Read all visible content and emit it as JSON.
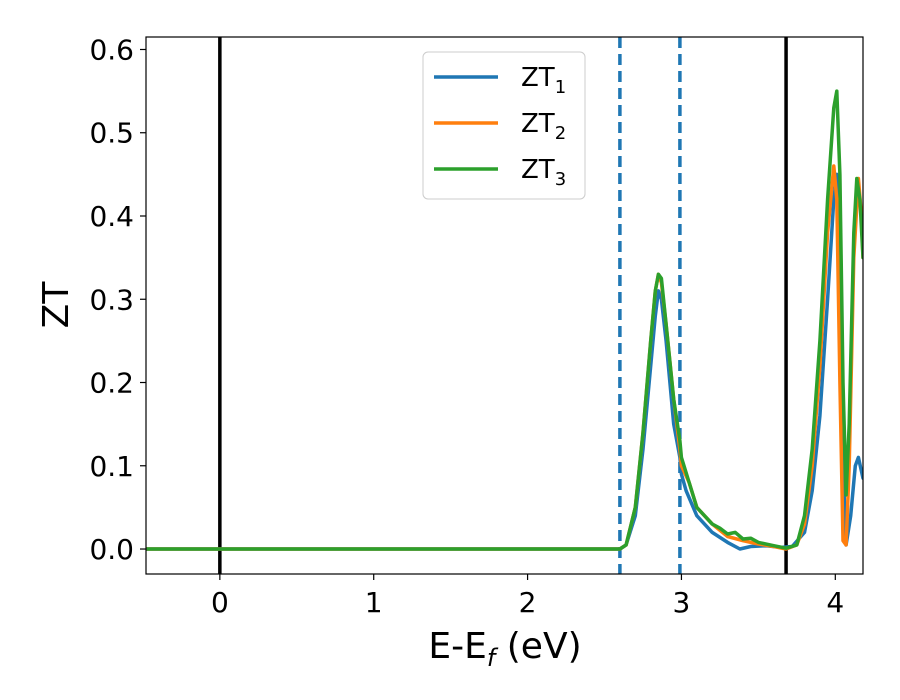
{
  "chart_data": {
    "type": "line",
    "xlabel": "E-E",
    "xlabel_sub": "f",
    "xlabel_unit": " (eV)",
    "ylabel": "ZT",
    "xlim": [
      -0.48,
      4.18
    ],
    "ylim": [
      -0.03,
      0.615
    ],
    "x_ticks": [
      0,
      1,
      2,
      3,
      4
    ],
    "x_tick_labels": [
      "0",
      "1",
      "2",
      "3",
      "4"
    ],
    "y_ticks": [
      0.0,
      0.1,
      0.2,
      0.3,
      0.4,
      0.5,
      0.6
    ],
    "y_tick_labels": [
      "0.0",
      "0.1",
      "0.2",
      "0.3",
      "0.4",
      "0.5",
      "0.6"
    ],
    "grid": false,
    "legend_position": "top-center",
    "vertical_lines": [
      {
        "x": 0.0,
        "style": "solid",
        "color": "#000000"
      },
      {
        "x": 3.68,
        "style": "solid",
        "color": "#000000"
      },
      {
        "x": 2.6,
        "style": "dashed",
        "color": "#1f77b4"
      },
      {
        "x": 2.99,
        "style": "dashed",
        "color": "#1f77b4"
      }
    ],
    "series": [
      {
        "name": "ZT",
        "subscript": "1",
        "color": "#1f77b4",
        "points": [
          [
            -0.48,
            0.0
          ],
          [
            2.6,
            0.0
          ],
          [
            2.64,
            0.005
          ],
          [
            2.7,
            0.04
          ],
          [
            2.75,
            0.12
          ],
          [
            2.8,
            0.22
          ],
          [
            2.83,
            0.28
          ],
          [
            2.85,
            0.31
          ],
          [
            2.87,
            0.3
          ],
          [
            2.9,
            0.25
          ],
          [
            2.95,
            0.15
          ],
          [
            2.99,
            0.11
          ],
          [
            3.0,
            0.09
          ],
          [
            3.03,
            0.07
          ],
          [
            3.1,
            0.04
          ],
          [
            3.2,
            0.02
          ],
          [
            3.3,
            0.008
          ],
          [
            3.38,
            0.0
          ],
          [
            3.45,
            0.003
          ],
          [
            3.55,
            0.004
          ],
          [
            3.65,
            0.002
          ],
          [
            3.72,
            0.003
          ],
          [
            3.8,
            0.02
          ],
          [
            3.85,
            0.07
          ],
          [
            3.9,
            0.16
          ],
          [
            3.95,
            0.3
          ],
          [
            3.99,
            0.42
          ],
          [
            4.01,
            0.45
          ],
          [
            4.03,
            0.35
          ],
          [
            4.05,
            0.1
          ],
          [
            4.07,
            0.005
          ],
          [
            4.1,
            0.04
          ],
          [
            4.13,
            0.1
          ],
          [
            4.15,
            0.11
          ],
          [
            4.18,
            0.085
          ]
        ]
      },
      {
        "name": "ZT",
        "subscript": "2",
        "color": "#ff7f0e",
        "points": [
          [
            -0.48,
            0.0
          ],
          [
            2.6,
            0.0
          ],
          [
            2.64,
            0.005
          ],
          [
            2.7,
            0.05
          ],
          [
            2.75,
            0.14
          ],
          [
            2.8,
            0.25
          ],
          [
            2.83,
            0.31
          ],
          [
            2.85,
            0.33
          ],
          [
            2.87,
            0.32
          ],
          [
            2.9,
            0.27
          ],
          [
            2.95,
            0.18
          ],
          [
            2.99,
            0.12
          ],
          [
            3.0,
            0.1
          ],
          [
            3.05,
            0.08
          ],
          [
            3.1,
            0.05
          ],
          [
            3.2,
            0.03
          ],
          [
            3.3,
            0.015
          ],
          [
            3.4,
            0.01
          ],
          [
            3.5,
            0.006
          ],
          [
            3.6,
            0.003
          ],
          [
            3.68,
            0.0
          ],
          [
            3.75,
            0.005
          ],
          [
            3.8,
            0.03
          ],
          [
            3.85,
            0.1
          ],
          [
            3.9,
            0.22
          ],
          [
            3.95,
            0.38
          ],
          [
            3.99,
            0.46
          ],
          [
            4.01,
            0.42
          ],
          [
            4.03,
            0.2
          ],
          [
            4.05,
            0.01
          ],
          [
            4.07,
            0.005
          ],
          [
            4.09,
            0.1
          ],
          [
            4.12,
            0.35
          ],
          [
            4.15,
            0.445
          ],
          [
            4.17,
            0.4
          ],
          [
            4.18,
            0.35
          ]
        ]
      },
      {
        "name": "ZT",
        "subscript": "3",
        "color": "#2ca02c",
        "points": [
          [
            -0.48,
            0.0
          ],
          [
            2.6,
            0.0
          ],
          [
            2.64,
            0.005
          ],
          [
            2.7,
            0.05
          ],
          [
            2.75,
            0.14
          ],
          [
            2.8,
            0.25
          ],
          [
            2.83,
            0.31
          ],
          [
            2.85,
            0.33
          ],
          [
            2.87,
            0.325
          ],
          [
            2.9,
            0.27
          ],
          [
            2.95,
            0.18
          ],
          [
            2.99,
            0.13
          ],
          [
            3.0,
            0.11
          ],
          [
            3.05,
            0.08
          ],
          [
            3.1,
            0.05
          ],
          [
            3.15,
            0.04
          ],
          [
            3.2,
            0.03
          ],
          [
            3.25,
            0.025
          ],
          [
            3.3,
            0.018
          ],
          [
            3.35,
            0.02
          ],
          [
            3.4,
            0.012
          ],
          [
            3.45,
            0.013
          ],
          [
            3.5,
            0.008
          ],
          [
            3.6,
            0.004
          ],
          [
            3.68,
            0.001
          ],
          [
            3.75,
            0.005
          ],
          [
            3.8,
            0.04
          ],
          [
            3.85,
            0.12
          ],
          [
            3.9,
            0.25
          ],
          [
            3.95,
            0.42
          ],
          [
            3.99,
            0.53
          ],
          [
            4.01,
            0.55
          ],
          [
            4.03,
            0.45
          ],
          [
            4.05,
            0.2
          ],
          [
            4.07,
            0.065
          ],
          [
            4.09,
            0.15
          ],
          [
            4.12,
            0.38
          ],
          [
            4.14,
            0.445
          ],
          [
            4.16,
            0.42
          ],
          [
            4.18,
            0.35
          ]
        ]
      }
    ]
  }
}
